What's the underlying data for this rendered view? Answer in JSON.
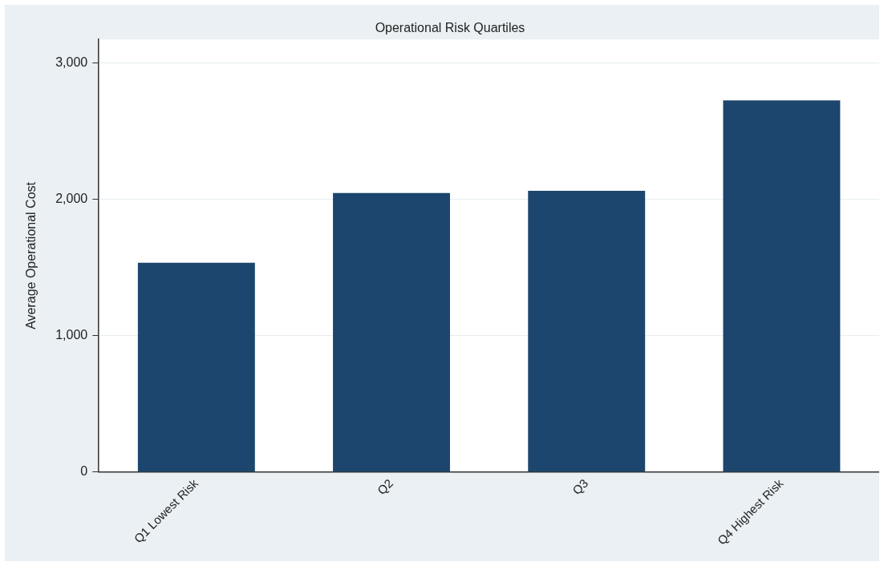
{
  "chart_data": {
    "type": "bar",
    "title": "Operational Risk Quartiles",
    "ylabel": "Average Operational Cost",
    "categories": [
      "Q1 Lowest Risk",
      "Q2",
      "Q3",
      "Q4 Highest Risk"
    ],
    "values": [
      1533,
      2044,
      2061,
      2723
    ],
    "color": "#1c466e",
    "ylim": [
      0,
      3170
    ],
    "yticks": [
      {
        "value": 0,
        "label": "0"
      },
      {
        "value": 1000,
        "label": "1,000"
      },
      {
        "value": 2000,
        "label": "2,000"
      },
      {
        "value": 3000,
        "label": "3,000"
      }
    ],
    "grid": "y",
    "legend": false
  }
}
